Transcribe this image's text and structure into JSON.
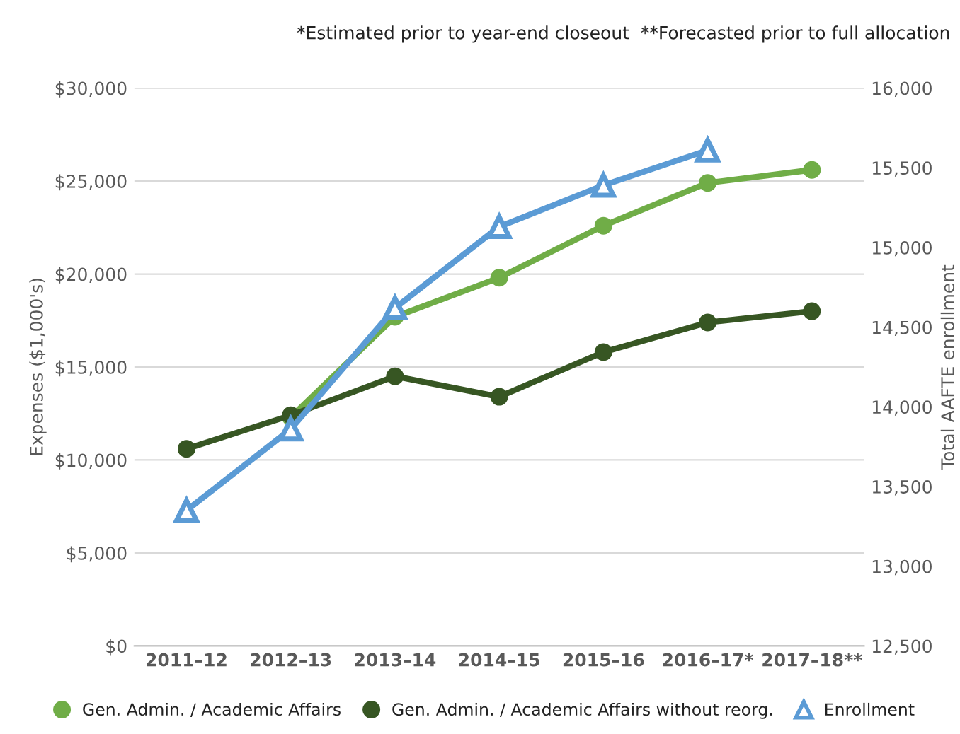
{
  "chart_data": {
    "type": "line",
    "categories": [
      "2011–12",
      "2012–13",
      "2013–14",
      "2014–15",
      "2015–16",
      "2016–17*",
      "2017–18**"
    ],
    "series": [
      {
        "name": "Gen. Admin. / Academic Affairs",
        "color": "#70ad47",
        "marker": "circle",
        "values": [
          null,
          12300,
          17700,
          19800,
          22600,
          24900,
          25600
        ]
      },
      {
        "name": "Gen. Admin. / Academic Affairs without reorg.",
        "color": "#375623",
        "marker": "circle",
        "values": [
          10600,
          12400,
          14500,
          13400,
          15800,
          17400,
          18000
        ]
      },
      {
        "name": "Enrollment",
        "color": "#5b9bd5",
        "marker": "triangle",
        "axis": "y2",
        "values": [
          13350,
          13860,
          14620,
          15130,
          15390,
          15610,
          null
        ]
      }
    ],
    "ylabel": "Expenses ($1,000's)",
    "y2label": "Total AAFTE enrollment",
    "ylim": [
      0,
      30000
    ],
    "yticks": [
      {
        "value": 0,
        "label": "$0"
      },
      {
        "value": 5000,
        "label": "$5,000"
      },
      {
        "value": 10000,
        "label": "$10,000"
      },
      {
        "value": 15000,
        "label": "$15,000"
      },
      {
        "value": 20000,
        "label": "$20,000"
      },
      {
        "value": 25000,
        "label": "$25,000"
      },
      {
        "value": 30000,
        "label": "$30,000"
      }
    ],
    "y2lim": [
      12500,
      16000
    ],
    "y2ticks": [
      {
        "value": 12500,
        "label": "12,500"
      },
      {
        "value": 13000,
        "label": "13,000"
      },
      {
        "value": 13500,
        "label": "13,500"
      },
      {
        "value": 14000,
        "label": "14,000"
      },
      {
        "value": 14500,
        "label": "14,500"
      },
      {
        "value": 15000,
        "label": "15,000"
      },
      {
        "value": 15500,
        "label": "15,500"
      },
      {
        "value": 16000,
        "label": "16,000"
      }
    ],
    "grid": "y",
    "legend": "bottom",
    "annotations": [
      "*Estimated prior to year-end closeout  **Forecasted prior to full allocation"
    ]
  }
}
